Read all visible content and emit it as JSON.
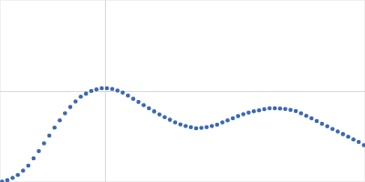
{
  "chart_data": {
    "type": "scatter",
    "color": "#3a68b4",
    "marker": "circle",
    "grid": true,
    "tick_labels": false,
    "xlim": [
      0,
      3.48
    ],
    "ylim": [
      0,
      2
    ],
    "xticks": [
      1
    ],
    "yticks": [
      1
    ],
    "x": [
      0.02,
      0.07,
      0.12,
      0.17,
      0.22,
      0.27,
      0.32,
      0.37,
      0.42,
      0.47,
      0.52,
      0.57,
      0.62,
      0.67,
      0.72,
      0.77,
      0.82,
      0.87,
      0.92,
      0.97,
      1.02,
      1.07,
      1.12,
      1.17,
      1.22,
      1.27,
      1.32,
      1.37,
      1.42,
      1.47,
      1.52,
      1.57,
      1.62,
      1.67,
      1.72,
      1.77,
      1.82,
      1.87,
      1.92,
      1.97,
      2.02,
      2.07,
      2.12,
      2.17,
      2.22,
      2.27,
      2.32,
      2.37,
      2.42,
      2.47,
      2.52,
      2.57,
      2.62,
      2.67,
      2.72,
      2.77,
      2.82,
      2.87,
      2.92,
      2.97,
      3.02,
      3.07,
      3.12,
      3.17,
      3.22,
      3.27,
      3.32,
      3.37,
      3.42,
      3.47
    ],
    "values": [
      0.005,
      0.02,
      0.045,
      0.078,
      0.125,
      0.18,
      0.26,
      0.34,
      0.425,
      0.51,
      0.597,
      0.677,
      0.755,
      0.824,
      0.885,
      0.937,
      0.971,
      1.0,
      1.017,
      1.03,
      1.03,
      1.023,
      1.005,
      0.982,
      0.95,
      0.914,
      0.88,
      0.845,
      0.81,
      0.776,
      0.742,
      0.712,
      0.684,
      0.655,
      0.632,
      0.615,
      0.602,
      0.59,
      0.595,
      0.602,
      0.615,
      0.63,
      0.655,
      0.678,
      0.7,
      0.724,
      0.745,
      0.762,
      0.777,
      0.788,
      0.8,
      0.81,
      0.81,
      0.808,
      0.802,
      0.792,
      0.78,
      0.755,
      0.727,
      0.7,
      0.67,
      0.64,
      0.612,
      0.583,
      0.555,
      0.526,
      0.497,
      0.468,
      0.44,
      0.405
    ]
  }
}
